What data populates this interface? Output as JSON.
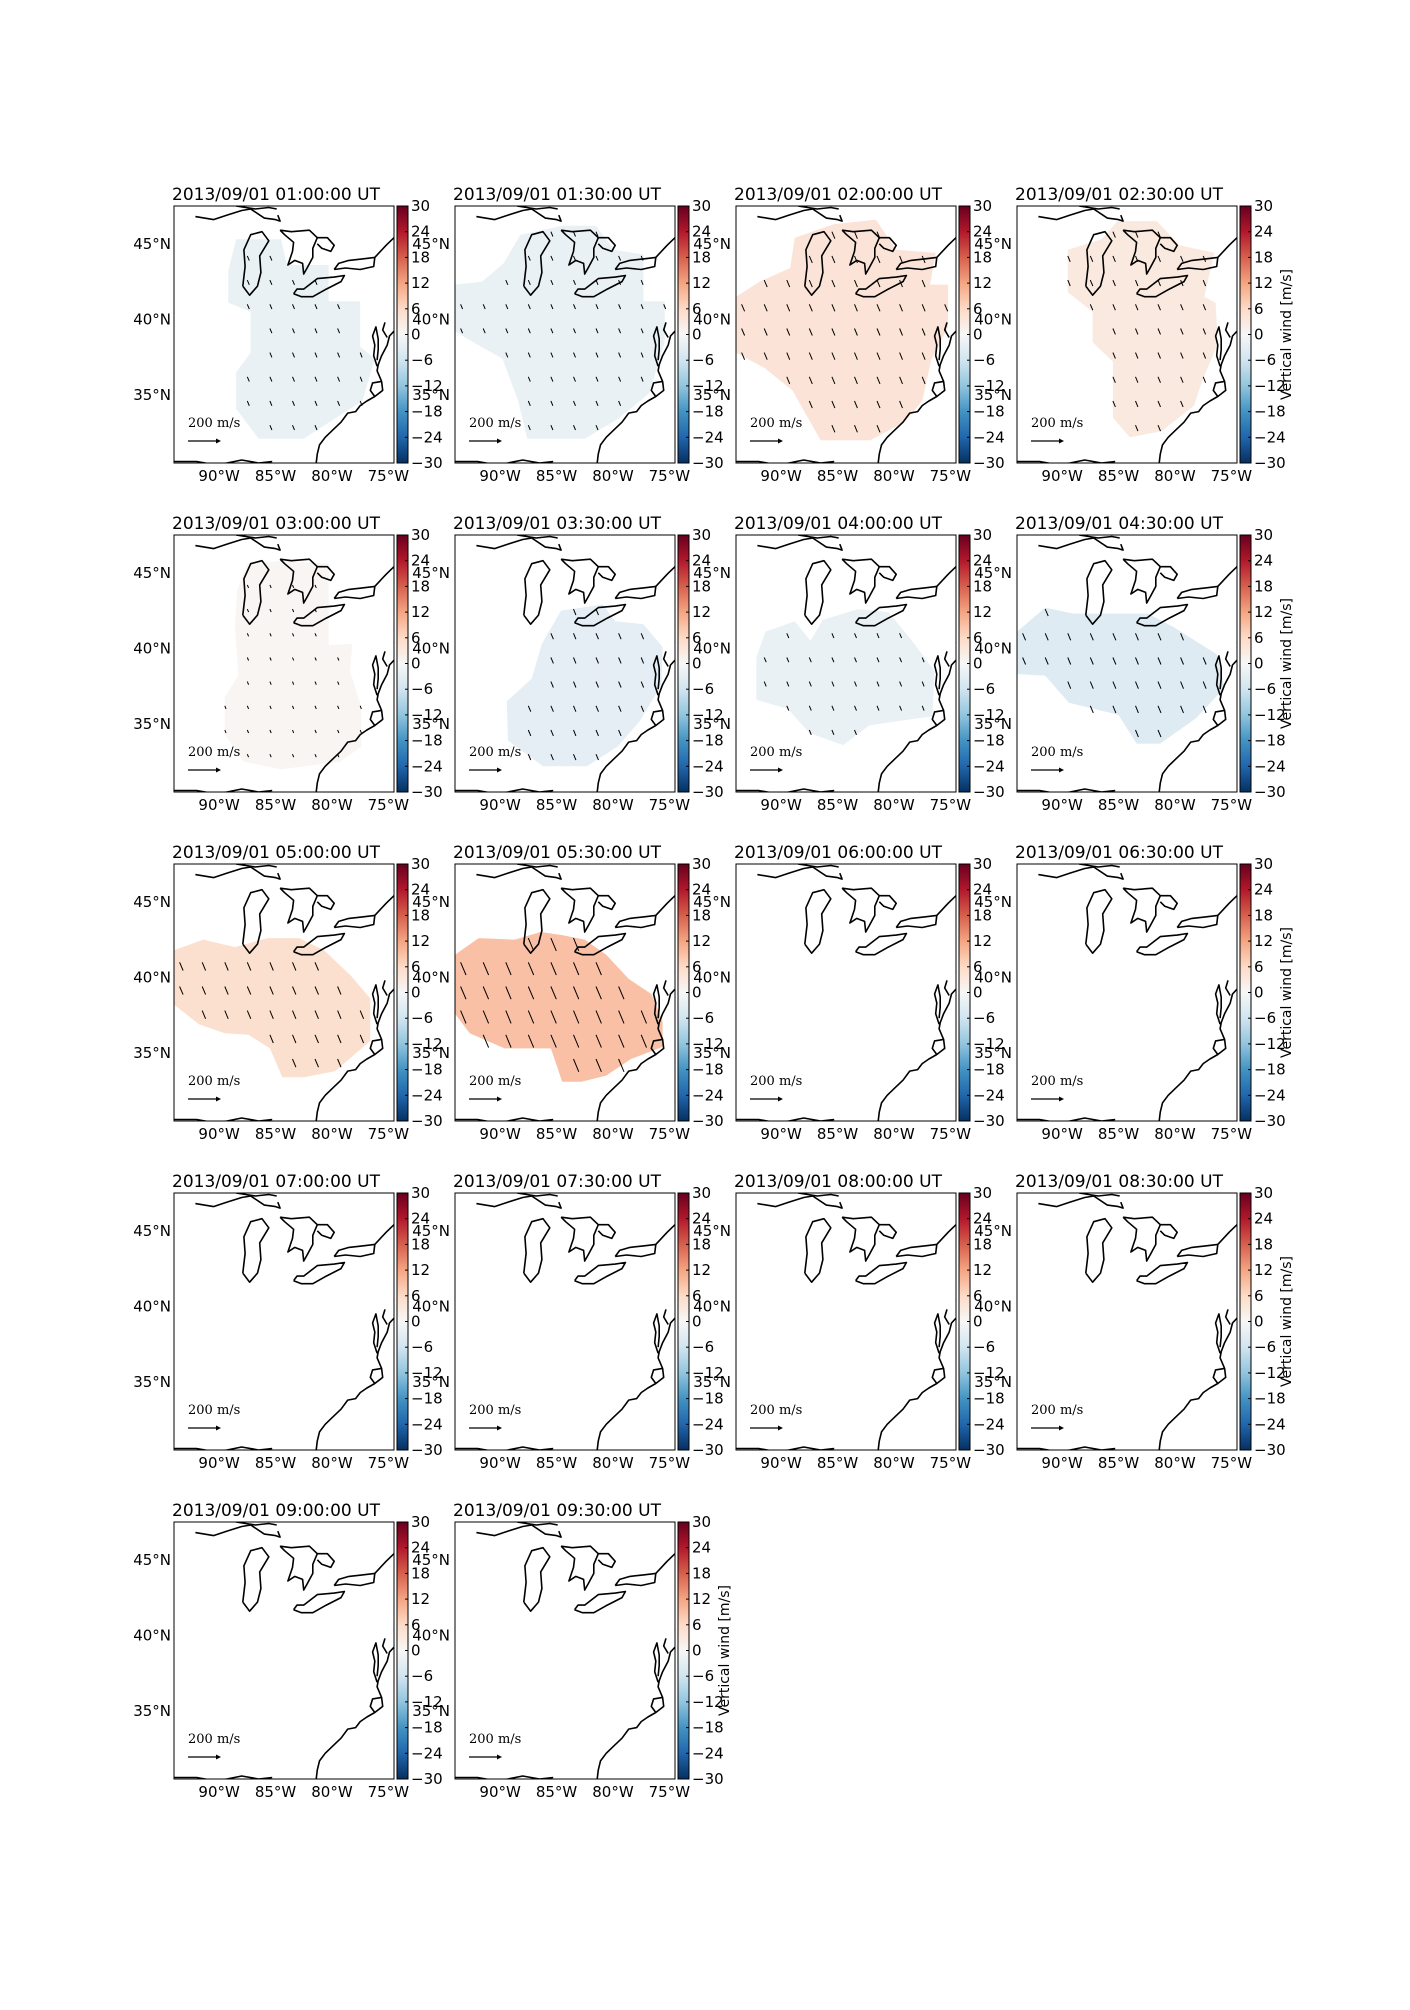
{
  "figure": {
    "colorbar_label": "Vertical wind [m/s]",
    "colorbar_ticks": [
      "30",
      "24",
      "18",
      "12",
      "6",
      "0",
      "−6",
      "−12",
      "−18",
      "−24",
      "−30"
    ],
    "colorbar_range": [
      -30,
      30
    ],
    "colormap": [
      "#67001f",
      "#b2182b",
      "#d6604d",
      "#f4a582",
      "#fddbc7",
      "#f7f7f7",
      "#d1e5f0",
      "#92c5de",
      "#4393c3",
      "#2166ac",
      "#053061"
    ],
    "lat_labels": [
      "45°N",
      "40°N",
      "35°N"
    ],
    "lon_labels": [
      "90°W",
      "85°W",
      "80°W",
      "75°W"
    ],
    "lat_values": [
      45,
      40,
      35
    ],
    "lon_values": [
      -90,
      -85,
      -80,
      -75
    ],
    "map_extent": {
      "lon": [
        -94,
        -74.5
      ],
      "lat": [
        30.5,
        47.5
      ]
    },
    "key": {
      "value": "200",
      "unit": "m/s"
    },
    "coastline_color": "#000000"
  },
  "panels": [
    {
      "title": "2013/09/01 01:00:00 UT",
      "region": "A",
      "value": -2,
      "arrows": true
    },
    {
      "title": "2013/09/01 01:30:00 UT",
      "region": "B",
      "value": -2,
      "arrows": true
    },
    {
      "title": "2013/09/01 02:00:00 UT",
      "region": "C",
      "value": 4,
      "arrows": true
    },
    {
      "title": "2013/09/01 02:30:00 UT",
      "region": "D",
      "value": 3,
      "arrows": true
    },
    {
      "title": "2013/09/01 03:00:00 UT",
      "region": "E",
      "value": 0.5,
      "arrows": true
    },
    {
      "title": "2013/09/01 03:30:00 UT",
      "region": "F",
      "value": -3,
      "arrows": true
    },
    {
      "title": "2013/09/01 04:00:00 UT",
      "region": "G",
      "value": -2,
      "arrows": true
    },
    {
      "title": "2013/09/01 04:30:00 UT",
      "region": "H",
      "value": -4,
      "arrows": true
    },
    {
      "title": "2013/09/01 05:00:00 UT",
      "region": "I",
      "value": 5,
      "arrows": true
    },
    {
      "title": "2013/09/01 05:30:00 UT",
      "region": "J",
      "value": 9,
      "arrows": true
    },
    {
      "title": "2013/09/01 06:00:00 UT",
      "region": "",
      "value": 0,
      "arrows": false
    },
    {
      "title": "2013/09/01 06:30:00 UT",
      "region": "",
      "value": 0,
      "arrows": false
    },
    {
      "title": "2013/09/01 07:00:00 UT",
      "region": "",
      "value": 0,
      "arrows": false
    },
    {
      "title": "2013/09/01 07:30:00 UT",
      "region": "",
      "value": 0,
      "arrows": false
    },
    {
      "title": "2013/09/01 08:00:00 UT",
      "region": "",
      "value": 0,
      "arrows": false
    },
    {
      "title": "2013/09/01 08:30:00 UT",
      "region": "",
      "value": 0,
      "arrows": false
    },
    {
      "title": "2013/09/01 09:00:00 UT",
      "region": "",
      "value": 0,
      "arrows": false
    },
    {
      "title": "2013/09/01 09:30:00 UT",
      "region": "",
      "value": 0,
      "arrows": false
    }
  ]
}
